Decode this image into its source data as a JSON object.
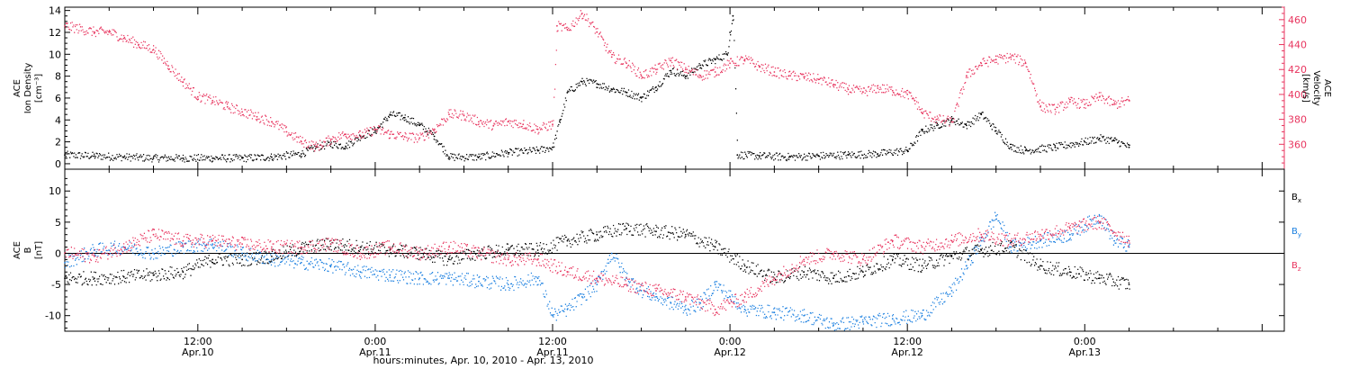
{
  "colors": {
    "black": "#000000",
    "pink": "#e8355f",
    "blue": "#1a7fe0"
  },
  "x_axis": {
    "tick_labels": [
      {
        "time": "12:00",
        "date": "Apr.10",
        "t": 12
      },
      {
        "time": "0:00",
        "date": "Apr.11",
        "t": 24
      },
      {
        "time": "12:00",
        "date": "Apr.11",
        "t": 36
      },
      {
        "time": "0:00",
        "date": "Apr.12",
        "t": 48
      },
      {
        "time": "12:00",
        "date": "Apr.12",
        "t": 60
      },
      {
        "time": "0:00",
        "date": "Apr.13",
        "t": 72
      }
    ],
    "title": "hours:minutes, Apr. 10, 2010 - Apr. 13, 2010"
  },
  "chart_data": [
    {
      "type": "scatter",
      "panel": "top",
      "ylabel_left": [
        "ACE",
        "Ion Density",
        "[cm⁻³]"
      ],
      "ylabel_right": [
        "ACE",
        "Velocity",
        "[km/s]"
      ],
      "xlim": [
        3,
        85.5
      ],
      "ylim_left": [
        -0.5,
        14.3
      ],
      "ylim_right": [
        340,
        470
      ],
      "left_ticks": [
        0,
        2,
        4,
        6,
        8,
        10,
        12,
        14
      ],
      "right_ticks": [
        360,
        380,
        400,
        420,
        440,
        460
      ],
      "series": [
        {
          "axis": "left",
          "color": "black",
          "points": [
            [
              3,
              0.8
            ],
            [
              5,
              0.7
            ],
            [
              7,
              0.6
            ],
            [
              9,
              0.5
            ],
            [
              11,
              0.5
            ],
            [
              13,
              0.5
            ],
            [
              15,
              0.5
            ],
            [
              17,
              0.6
            ],
            [
              19,
              0.9
            ],
            [
              20,
              1.5
            ],
            [
              21,
              1.8
            ],
            [
              22,
              1.6
            ],
            [
              23,
              2.5
            ],
            [
              24,
              3
            ],
            [
              25,
              4.5
            ],
            [
              26,
              4.2
            ],
            [
              27,
              3.5
            ],
            [
              28,
              2.5
            ],
            [
              29,
              0.6
            ],
            [
              31,
              0.6
            ],
            [
              33,
              1
            ],
            [
              35,
              1.2
            ],
            [
              36,
              1.5
            ],
            [
              36.5,
              4
            ],
            [
              37,
              6.5
            ],
            [
              38,
              7.5
            ],
            [
              39,
              7.3
            ],
            [
              40,
              6.8
            ],
            [
              41,
              6.5
            ],
            [
              42,
              6
            ],
            [
              43,
              7
            ],
            [
              44,
              8.5
            ],
            [
              45,
              8
            ],
            [
              46,
              9
            ],
            [
              47,
              9.5
            ],
            [
              47.8,
              10
            ],
            [
              48,
              12
            ],
            [
              48.2,
              13.5
            ],
            [
              48.5,
              0.8
            ],
            [
              50,
              0.7
            ],
            [
              52,
              0.6
            ],
            [
              54,
              0.7
            ],
            [
              56,
              0.8
            ],
            [
              58,
              0.9
            ],
            [
              60,
              1.2
            ],
            [
              61,
              3
            ],
            [
              62,
              3.5
            ],
            [
              63,
              4
            ],
            [
              64,
              3.5
            ],
            [
              65,
              4.5
            ],
            [
              66,
              3
            ],
            [
              67,
              1.5
            ],
            [
              68,
              1.2
            ],
            [
              70,
              1.5
            ],
            [
              72,
              2
            ],
            [
              73,
              2.3
            ],
            [
              74,
              2.1
            ],
            [
              75,
              1.5
            ]
          ]
        },
        {
          "axis": "right",
          "color": "pink",
          "points": [
            [
              3,
              455
            ],
            [
              5,
              450
            ],
            [
              6,
              450
            ],
            [
              7,
              445
            ],
            [
              8,
              440
            ],
            [
              9,
              436
            ],
            [
              10,
              423
            ],
            [
              11,
              410
            ],
            [
              12,
              398
            ],
            [
              13,
              395
            ],
            [
              14,
              390
            ],
            [
              15,
              386
            ],
            [
              16,
              382
            ],
            [
              17,
              378
            ],
            [
              18,
              370
            ],
            [
              19,
              362
            ],
            [
              20,
              358
            ],
            [
              21,
              364
            ],
            [
              22,
              368
            ],
            [
              23,
              367
            ],
            [
              24,
              372
            ],
            [
              25,
              368
            ],
            [
              26,
              366
            ],
            [
              27,
              365
            ],
            [
              28,
              372
            ],
            [
              29,
              384
            ],
            [
              30,
              383
            ],
            [
              31,
              378
            ],
            [
              32,
              375
            ],
            [
              33,
              378
            ],
            [
              34,
              376
            ],
            [
              35,
              372
            ],
            [
              36,
              376
            ],
            [
              36.3,
              455
            ],
            [
              37,
              452
            ],
            [
              38,
              465
            ],
            [
              39,
              450
            ],
            [
              40,
              430
            ],
            [
              41,
              425
            ],
            [
              42,
              415
            ],
            [
              43,
              420
            ],
            [
              44,
              427
            ],
            [
              45,
              420
            ],
            [
              46,
              415
            ],
            [
              47,
              418
            ],
            [
              48,
              425
            ],
            [
              49,
              428
            ],
            [
              50,
              422
            ],
            [
              51,
              418
            ],
            [
              52,
              415
            ],
            [
              53,
              414
            ],
            [
              54,
              412
            ],
            [
              55,
              408
            ],
            [
              56,
              404
            ],
            [
              57,
              402
            ],
            [
              58,
              405
            ],
            [
              59,
              403
            ],
            [
              60,
              400
            ],
            [
              60.5,
              395
            ],
            [
              61,
              385
            ],
            [
              62,
              380
            ],
            [
              63,
              378
            ],
            [
              64,
              415
            ],
            [
              65,
              425
            ],
            [
              66,
              428
            ],
            [
              67,
              430
            ],
            [
              68,
              425
            ],
            [
              69,
              390
            ],
            [
              70,
              388
            ],
            [
              71,
              394
            ],
            [
              72,
              392
            ],
            [
              73,
              398
            ],
            [
              74,
              392
            ],
            [
              75,
              395
            ]
          ]
        }
      ]
    },
    {
      "type": "scatter",
      "panel": "bottom",
      "ylabel_left": [
        "ACE",
        "B",
        "[nT]"
      ],
      "xlim": [
        3,
        85.5
      ],
      "ylim": [
        -12.5,
        13.5
      ],
      "left_ticks": [
        -10,
        -5,
        0,
        5,
        10
      ],
      "reference_line": 0,
      "series": [
        {
          "name": "Bx",
          "color": "black",
          "points": [
            [
              3,
              -4
            ],
            [
              5,
              -4
            ],
            [
              7,
              -3.8
            ],
            [
              9,
              -3.5
            ],
            [
              11,
              -3
            ],
            [
              13,
              -1
            ],
            [
              15,
              -1
            ],
            [
              17,
              -0.5
            ],
            [
              19,
              0.8
            ],
            [
              21,
              1.5
            ],
            [
              23,
              1
            ],
            [
              25,
              0.5
            ],
            [
              27,
              0
            ],
            [
              29,
              -1
            ],
            [
              31,
              0
            ],
            [
              33,
              0.5
            ],
            [
              35,
              0.5
            ],
            [
              37,
              2
            ],
            [
              39,
              3
            ],
            [
              41,
              4
            ],
            [
              43,
              3.5
            ],
            [
              45,
              3
            ],
            [
              47,
              1
            ],
            [
              49,
              -2
            ],
            [
              51,
              -4
            ],
            [
              53,
              -3
            ],
            [
              55,
              -4
            ],
            [
              57,
              -3
            ],
            [
              59,
              -1
            ],
            [
              61,
              -2
            ],
            [
              63,
              -0.5
            ],
            [
              65,
              0.5
            ],
            [
              67,
              1
            ],
            [
              69,
              -2
            ],
            [
              71,
              -3
            ],
            [
              73,
              -4
            ],
            [
              75,
              -5
            ]
          ]
        },
        {
          "name": "By",
          "color": "blue",
          "points": [
            [
              3,
              -1.5
            ],
            [
              5,
              0.5
            ],
            [
              7,
              1
            ],
            [
              9,
              0
            ],
            [
              11,
              1
            ],
            [
              13,
              1.5
            ],
            [
              15,
              0
            ],
            [
              17,
              -1
            ],
            [
              19,
              -1.5
            ],
            [
              21,
              -2
            ],
            [
              23,
              -3
            ],
            [
              25,
              -3.5
            ],
            [
              27,
              -4
            ],
            [
              29,
              -4
            ],
            [
              31,
              -4.5
            ],
            [
              33,
              -5
            ],
            [
              35,
              -4
            ],
            [
              36,
              -10
            ],
            [
              37,
              -9
            ],
            [
              38,
              -7
            ],
            [
              39,
              -5
            ],
            [
              40,
              0
            ],
            [
              41,
              -4
            ],
            [
              42,
              -6
            ],
            [
              43,
              -7
            ],
            [
              44,
              -8
            ],
            [
              45,
              -9
            ],
            [
              46,
              -8
            ],
            [
              47,
              -5
            ],
            [
              48,
              -7
            ],
            [
              49,
              -9
            ],
            [
              51,
              -9.5
            ],
            [
              53,
              -10
            ],
            [
              55,
              -11.5
            ],
            [
              57,
              -11
            ],
            [
              59,
              -10.5
            ],
            [
              61,
              -10
            ],
            [
              63,
              -6
            ],
            [
              64,
              -2
            ],
            [
              65,
              2
            ],
            [
              66,
              6
            ],
            [
              67,
              1
            ],
            [
              69,
              2
            ],
            [
              71,
              3
            ],
            [
              73,
              6
            ],
            [
              74,
              2
            ],
            [
              75,
              1
            ]
          ]
        },
        {
          "name": "Bz",
          "color": "pink",
          "points": [
            [
              3,
              0
            ],
            [
              5,
              -0.5
            ],
            [
              7,
              1
            ],
            [
              9,
              3
            ],
            [
              11,
              2
            ],
            [
              13,
              2
            ],
            [
              15,
              1.5
            ],
            [
              17,
              1
            ],
            [
              19,
              1
            ],
            [
              21,
              1.5
            ],
            [
              23,
              0
            ],
            [
              25,
              1
            ],
            [
              27,
              0
            ],
            [
              29,
              1
            ],
            [
              31,
              0
            ],
            [
              33,
              -1
            ],
            [
              35,
              -1
            ],
            [
              37,
              -3
            ],
            [
              39,
              -4
            ],
            [
              41,
              -5
            ],
            [
              43,
              -6
            ],
            [
              45,
              -7
            ],
            [
              47,
              -9
            ],
            [
              49,
              -7
            ],
            [
              51,
              -4
            ],
            [
              53,
              -1
            ],
            [
              55,
              0
            ],
            [
              57,
              -1
            ],
            [
              59,
              2
            ],
            [
              61,
              1
            ],
            [
              63,
              2
            ],
            [
              65,
              3
            ],
            [
              67,
              2
            ],
            [
              69,
              3
            ],
            [
              71,
              4
            ],
            [
              73,
              5
            ],
            [
              75,
              2
            ]
          ]
        }
      ]
    }
  ],
  "legend": [
    {
      "base": "B",
      "sub": "x",
      "color": "black"
    },
    {
      "base": "B",
      "sub": "y",
      "color": "blue"
    },
    {
      "base": "B",
      "sub": "z",
      "color": "pink"
    }
  ]
}
